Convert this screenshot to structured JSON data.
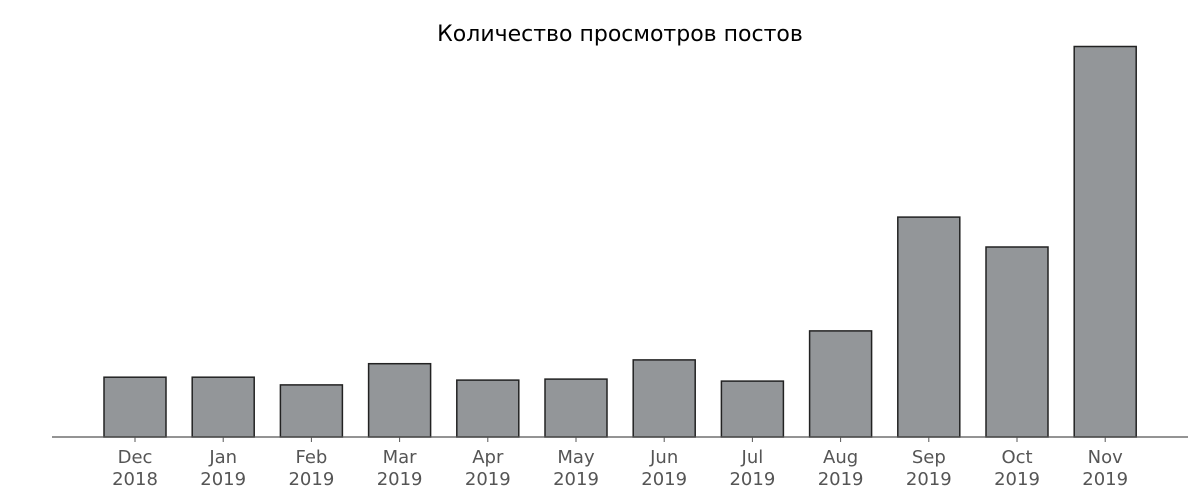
{
  "chart_data": {
    "type": "bar",
    "title": "Количество просмотров постов",
    "xlabel": "",
    "ylabel": "",
    "categories": [
      {
        "month": "Dec",
        "year": "2018"
      },
      {
        "month": "Jan",
        "year": "2019"
      },
      {
        "month": "Feb",
        "year": "2019"
      },
      {
        "month": "Mar",
        "year": "2019"
      },
      {
        "month": "Apr",
        "year": "2019"
      },
      {
        "month": "May",
        "year": "2019"
      },
      {
        "month": "Jun",
        "year": "2019"
      },
      {
        "month": "Jul",
        "year": "2019"
      },
      {
        "month": "Aug",
        "year": "2019"
      },
      {
        "month": "Sep",
        "year": "2019"
      },
      {
        "month": "Oct",
        "year": "2019"
      },
      {
        "month": "Nov",
        "year": "2019"
      }
    ],
    "values": [
      62,
      62,
      54,
      76,
      59,
      60,
      80,
      58,
      110,
      228,
      197,
      405
    ],
    "ylim": [
      0,
      420
    ],
    "y_axis_visible": false,
    "grid": false,
    "legend": "none",
    "colors": {
      "bar_fill": "#939699",
      "bar_stroke": "#222222",
      "axis": "#555555",
      "tick_label": "#555555"
    }
  }
}
